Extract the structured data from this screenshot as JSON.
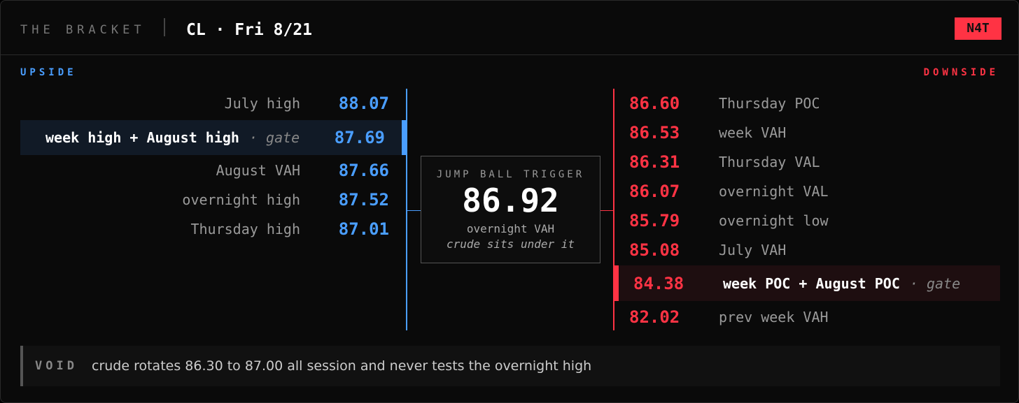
{
  "header": {
    "brand": "THE BRACKET",
    "title": "CL · Fri 8/21",
    "badge": "N4T"
  },
  "upside": {
    "label": "UPSIDE",
    "levels": [
      {
        "label": "July high",
        "price": "88.07"
      },
      {
        "label": "week high + August high",
        "note": "· gate",
        "price": "87.69"
      },
      {
        "label": "August VAH",
        "price": "87.66"
      },
      {
        "label": "overnight high",
        "price": "87.52"
      },
      {
        "label": "Thursday high",
        "price": "87.01"
      }
    ]
  },
  "trigger": {
    "label": "JUMP BALL TRIGGER",
    "price": "86.92",
    "level": "overnight VAH",
    "note": "crude sits under it"
  },
  "downside": {
    "label": "DOWNSIDE",
    "levels": [
      {
        "price": "86.60",
        "label": "Thursday POC"
      },
      {
        "price": "86.53",
        "label": "week VAH"
      },
      {
        "price": "86.31",
        "label": "Thursday VAL"
      },
      {
        "price": "86.07",
        "label": "overnight VAL"
      },
      {
        "price": "85.79",
        "label": "overnight low"
      },
      {
        "price": "85.08",
        "label": "July VAH"
      },
      {
        "price": "84.38",
        "label": "week POC + August POC",
        "note": "· gate"
      },
      {
        "price": "82.02",
        "label": "prev week VAH"
      }
    ]
  },
  "footer": {
    "label": "VOID",
    "text": "crude rotates 86.30 to 87.00 all session and never tests the overnight high"
  }
}
